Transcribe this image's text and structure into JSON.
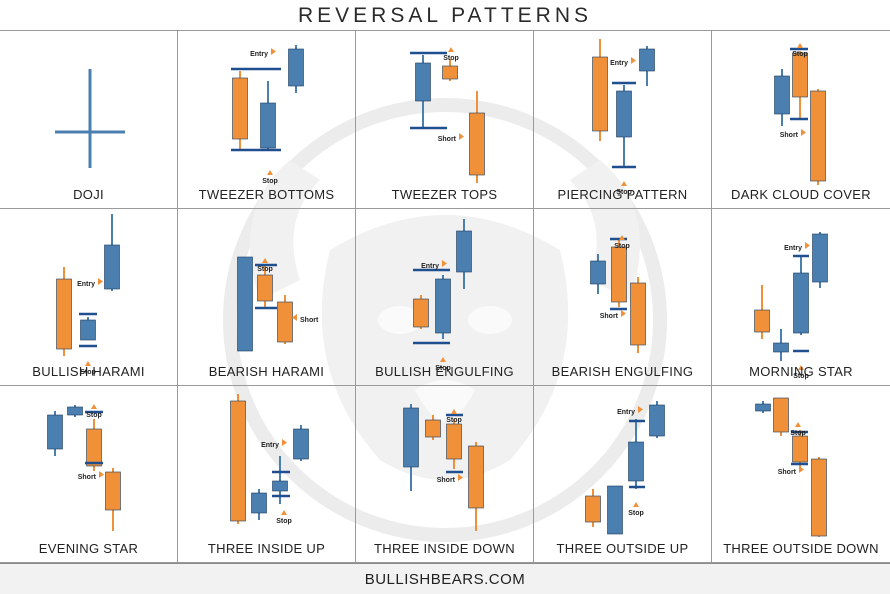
{
  "title": "REVERSAL PATTERNS",
  "footer": "BULLISHBEARS.COM",
  "colors": {
    "bull": "#4a7fb0",
    "bear": "#f0913a",
    "line": "#1f4f8f",
    "label": "#222222"
  },
  "patterns": [
    {
      "name": "DOJI",
      "candles": [],
      "lines": [],
      "tags": []
    },
    {
      "name": "TWEEZER BOTTOMS",
      "tags": [
        "Entry",
        "Stop"
      ]
    },
    {
      "name": "TWEEZER TOPS",
      "tags": [
        "Stop",
        "Short"
      ]
    },
    {
      "name": "PIERCING PATTERN",
      "tags": [
        "Entry",
        "Stop"
      ]
    },
    {
      "name": "DARK CLOUD COVER",
      "tags": [
        "Stop",
        "Short"
      ]
    },
    {
      "name": "BULLISH HARAMI",
      "tags": [
        "Entry",
        "Stop"
      ]
    },
    {
      "name": "BEARISH HARAMI",
      "tags": [
        "Stop",
        "Short"
      ]
    },
    {
      "name": "BULLISH ENGULFING",
      "tags": [
        "Entry",
        "Stop"
      ]
    },
    {
      "name": "BEARISH ENGULFING",
      "tags": [
        "Stop",
        "Short"
      ]
    },
    {
      "name": "MORNING STAR",
      "tags": [
        "Entry",
        "Stop"
      ]
    },
    {
      "name": "EVENING STAR",
      "tags": [
        "Stop",
        "Short"
      ]
    },
    {
      "name": "THREE INSIDE UP",
      "tags": [
        "Entry",
        "Stop"
      ]
    },
    {
      "name": "THREE INSIDE DOWN",
      "tags": [
        "Stop",
        "Short"
      ]
    },
    {
      "name": "THREE OUTSIDE UP",
      "tags": [
        "Entry",
        "Stop"
      ]
    },
    {
      "name": "THREE OUTSIDE DOWN",
      "tags": [
        "Stop",
        "Short"
      ]
    }
  ]
}
